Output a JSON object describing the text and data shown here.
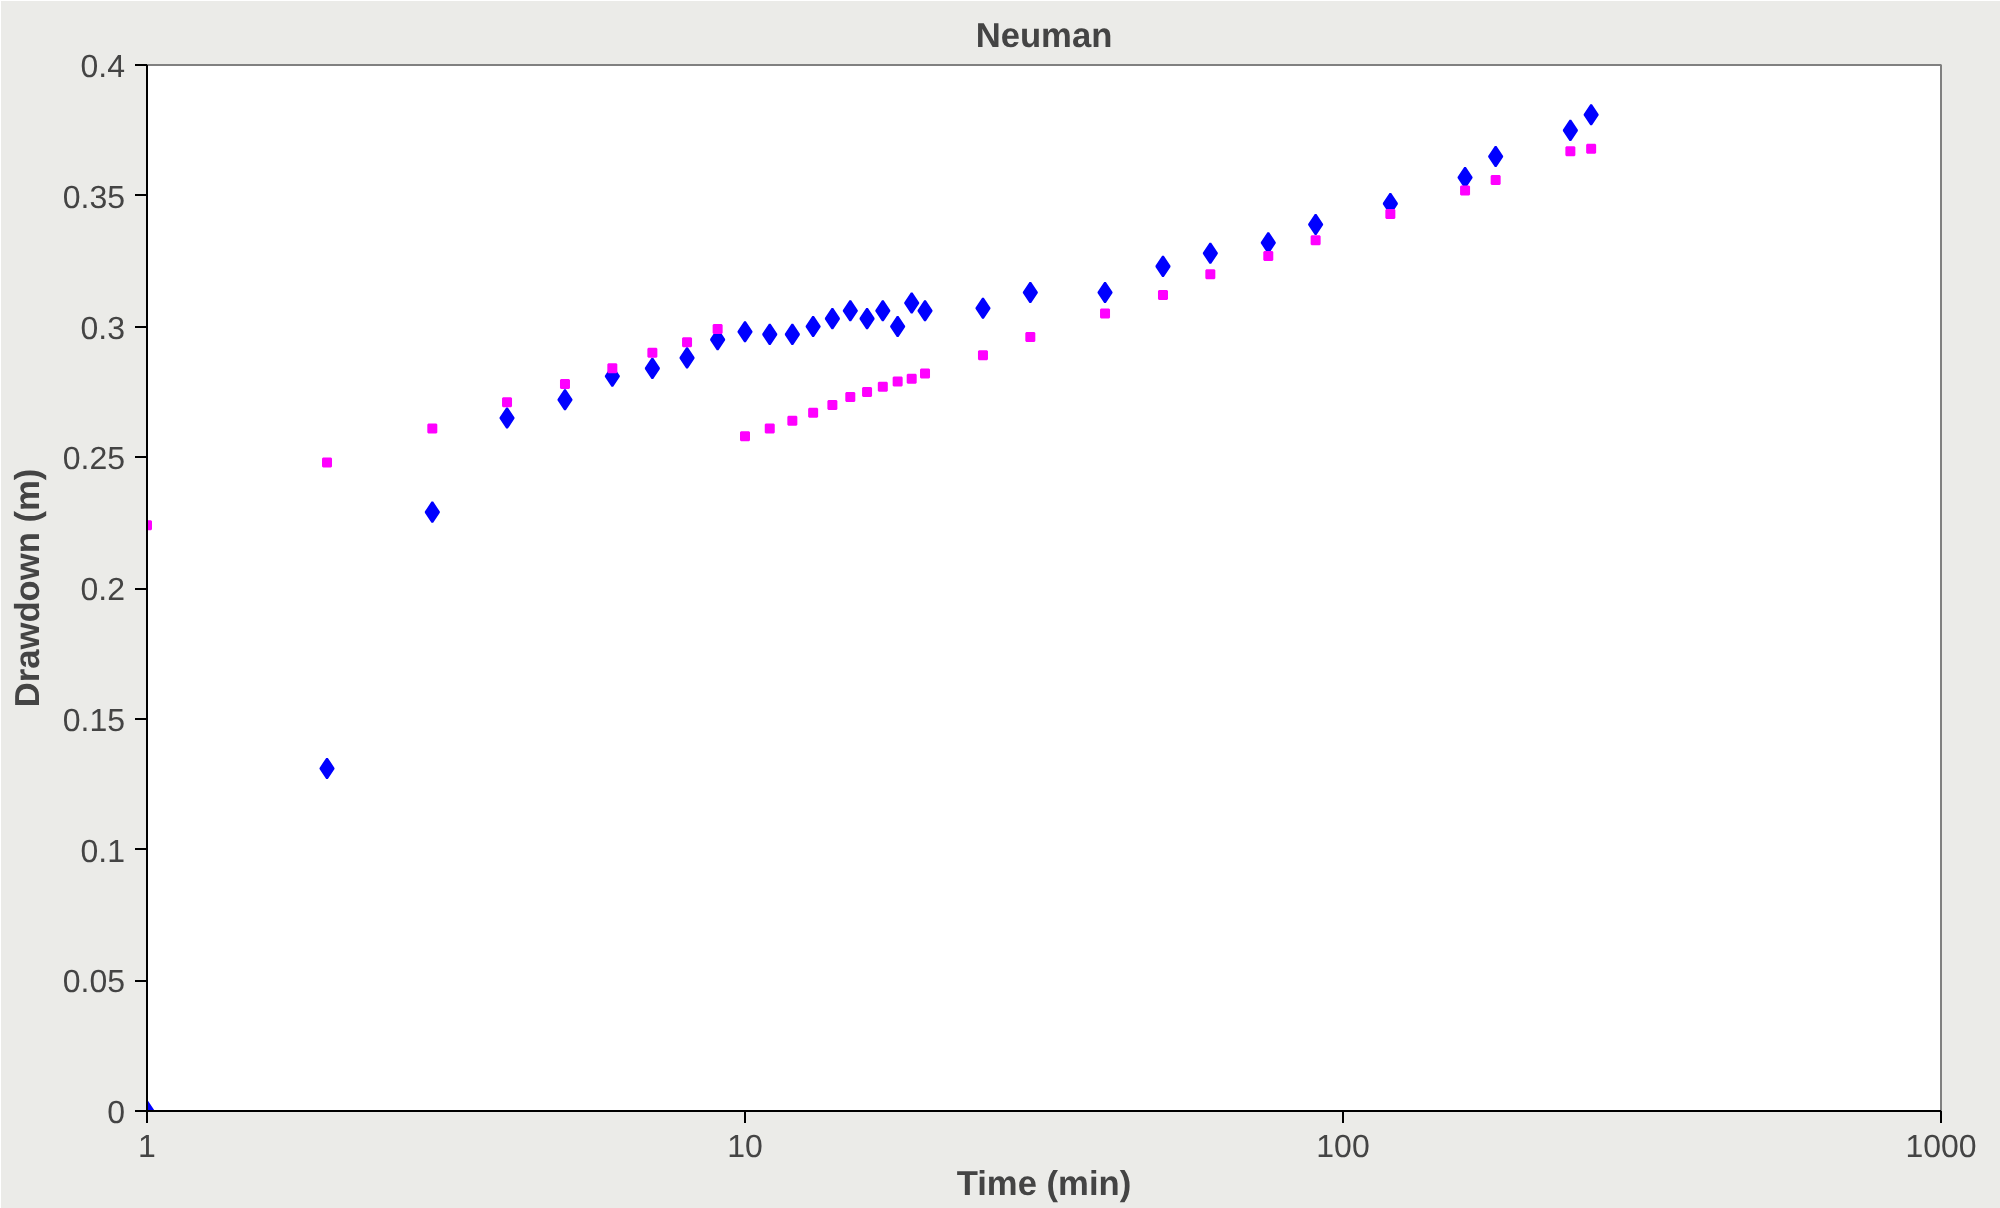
{
  "chart_data": {
    "type": "scatter",
    "title": "Neuman",
    "xlabel": "Time (min)",
    "ylabel": "Drawdown (m)",
    "log": "x",
    "grid": false,
    "xlim": [
      1,
      1000
    ],
    "xticks": [
      1,
      10,
      100,
      1000
    ],
    "ylim": [
      0,
      0.4
    ],
    "yticks": [
      0,
      0.05,
      0.1,
      0.15,
      0.2,
      0.25,
      0.3,
      0.35,
      0.4
    ],
    "series": [
      {
        "color": "#0000ff",
        "marker": "diamond",
        "x": [
          1,
          2,
          3,
          4,
          5,
          6,
          7,
          8,
          9,
          10,
          11,
          12,
          13,
          14,
          15,
          16,
          17,
          18,
          19,
          20,
          25,
          30,
          40,
          50,
          60,
          75,
          90,
          120,
          160,
          180,
          240,
          260
        ],
        "values": [
          0,
          0.131,
          0.229,
          0.265,
          0.272,
          0.281,
          0.284,
          0.288,
          0.295,
          0.298,
          0.297,
          0.297,
          0.3,
          0.303,
          0.306,
          0.303,
          0.306,
          0.3,
          0.309,
          0.306,
          0.307,
          0.313,
          0.313,
          0.323,
          0.328,
          0.332,
          0.339,
          0.347,
          0.357,
          0.365,
          0.375,
          0.381
        ]
      },
      {
        "color": "#ff00ff",
        "marker": "square",
        "x": [
          1,
          2,
          3,
          4,
          5,
          6,
          7,
          8,
          9,
          10,
          11,
          12,
          13,
          14,
          15,
          16,
          17,
          18,
          19,
          20,
          25,
          30,
          40,
          50,
          60,
          75,
          90,
          120,
          160,
          180,
          240,
          260
        ],
        "values": [
          0.224,
          0.248,
          0.261,
          0.271,
          0.278,
          0.284,
          0.29,
          0.294,
          0.299,
          0.258,
          0.261,
          0.264,
          0.267,
          0.27,
          0.273,
          0.275,
          0.277,
          0.279,
          0.28,
          0.282,
          0.289,
          0.296,
          0.305,
          0.312,
          0.32,
          0.327,
          0.333,
          0.343,
          0.352,
          0.356,
          0.367,
          0.368
        ]
      }
    ]
  }
}
